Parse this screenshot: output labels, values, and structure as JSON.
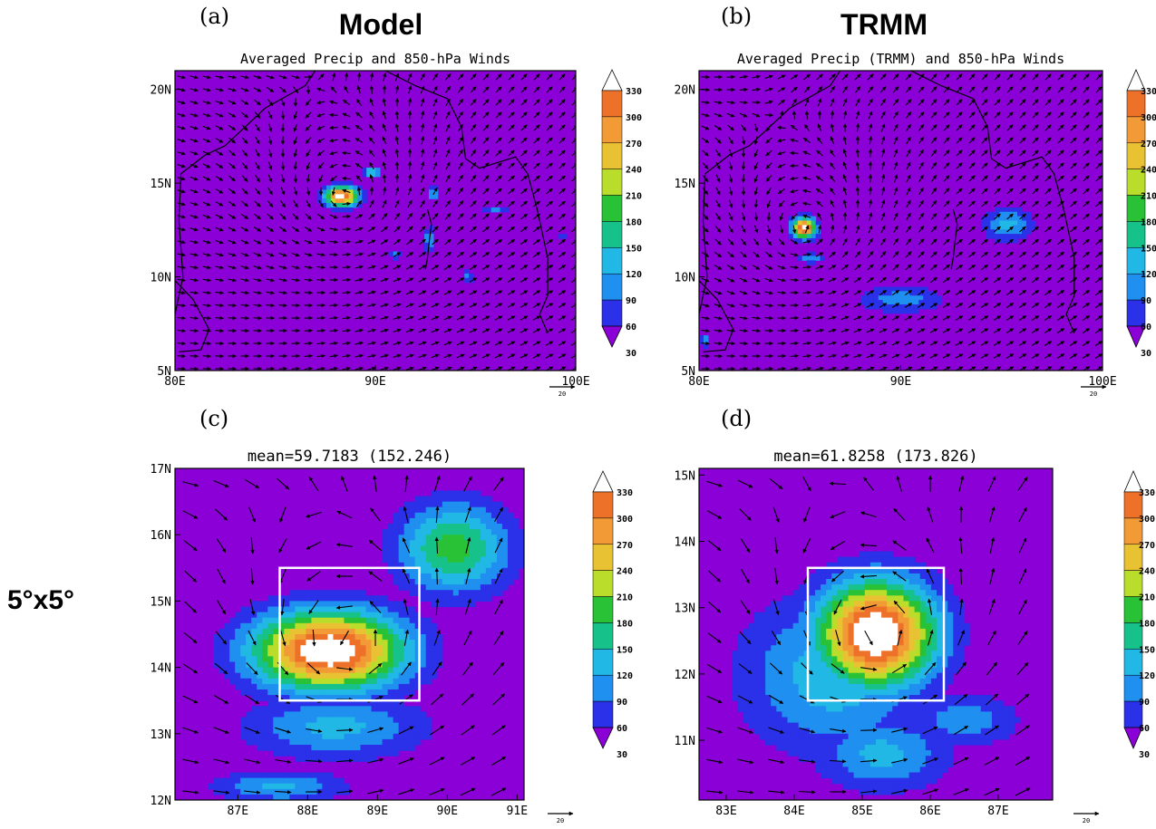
{
  "row_label": "5°x5°",
  "colors": {
    "background": "#8b00d6",
    "land_outline": "#000000",
    "box": "#ffffff",
    "levels": [
      "#8b00d6",
      "#2a31e8",
      "#1f8ff0",
      "#22b8e6",
      "#17c28a",
      "#29c236",
      "#b9dd2a",
      "#e9c233",
      "#f29a35",
      "#ee7129",
      "#ffffff"
    ]
  },
  "colorbar": {
    "labels": [
      "330",
      "300",
      "270",
      "240",
      "210",
      "180",
      "150",
      "120",
      "90",
      "60",
      "30"
    ]
  },
  "wind_ref_label": "20",
  "chart_data": [
    {
      "panel": "(a)",
      "heading": "Model",
      "type": "heatmap",
      "title": "Averaged Precip and 850-hPa Winds",
      "x_ticks": [
        "80E",
        "90E",
        "100E"
      ],
      "y_ticks": [
        "5N",
        "10N",
        "15N",
        "20N"
      ],
      "xlim": [
        80,
        100
      ],
      "ylim": [
        5,
        21
      ],
      "precip_blobs": [
        {
          "lon": 88.3,
          "lat": 14.3,
          "rx": 1.0,
          "ry": 0.65,
          "peak": 330
        },
        {
          "lon": 89.8,
          "lat": 15.6,
          "rx": 0.55,
          "ry": 0.35,
          "peak": 130
        },
        {
          "lon": 92.9,
          "lat": 14.5,
          "rx": 0.35,
          "ry": 0.5,
          "peak": 100
        },
        {
          "lon": 92.7,
          "lat": 12.0,
          "rx": 0.35,
          "ry": 0.8,
          "peak": 95
        },
        {
          "lon": 94.6,
          "lat": 10.0,
          "rx": 0.3,
          "ry": 0.4,
          "peak": 80
        },
        {
          "lon": 96.0,
          "lat": 13.6,
          "rx": 0.8,
          "ry": 0.25,
          "peak": 75
        },
        {
          "lon": 99.3,
          "lat": 12.2,
          "rx": 0.25,
          "ry": 0.3,
          "peak": 70
        },
        {
          "lon": 91.0,
          "lat": 11.2,
          "rx": 0.6,
          "ry": 0.3,
          "peak": 70
        }
      ],
      "vortex": {
        "lon": 88.5,
        "lat": 14.4,
        "strength": 1.0
      }
    },
    {
      "panel": "(b)",
      "heading": "TRMM",
      "type": "heatmap",
      "title": "Averaged Precip (TRMM) and 850-hPa Winds",
      "x_ticks": [
        "80E",
        "90E",
        "100E"
      ],
      "y_ticks": [
        "5N",
        "10N",
        "15N",
        "20N"
      ],
      "xlim": [
        80,
        100
      ],
      "ylim": [
        5,
        21
      ],
      "precip_blobs": [
        {
          "lon": 85.2,
          "lat": 12.6,
          "rx": 0.7,
          "ry": 0.65,
          "peak": 340
        },
        {
          "lon": 85.5,
          "lat": 11.0,
          "rx": 0.8,
          "ry": 0.3,
          "peak": 90
        },
        {
          "lon": 95.3,
          "lat": 12.8,
          "rx": 1.5,
          "ry": 1.1,
          "peak": 100
        },
        {
          "lon": 90.0,
          "lat": 8.8,
          "rx": 2.8,
          "ry": 0.9,
          "peak": 75
        },
        {
          "lon": 80.3,
          "lat": 6.6,
          "rx": 0.3,
          "ry": 0.5,
          "peak": 80
        }
      ],
      "vortex": {
        "lon": 85.2,
        "lat": 12.6,
        "strength": 0.9
      }
    },
    {
      "panel": "(c)",
      "type": "heatmap",
      "title": "mean=59.7183 (152.246)",
      "x_ticks": [
        "87E",
        "88E",
        "89E",
        "90E",
        "91E"
      ],
      "y_ticks": [
        "12N",
        "13N",
        "14N",
        "15N",
        "16N",
        "17N"
      ],
      "xlim": [
        86.1,
        91.1
      ],
      "ylim": [
        12,
        17
      ],
      "box": {
        "lon": [
          87.6,
          89.6
        ],
        "lat": [
          13.5,
          15.5
        ]
      },
      "precip_blobs": [
        {
          "lon": 88.3,
          "lat": 14.25,
          "rx": 1.35,
          "ry": 0.75,
          "peak": 340
        },
        {
          "lon": 90.1,
          "lat": 15.8,
          "rx": 1.0,
          "ry": 0.85,
          "peak": 165
        },
        {
          "lon": 88.4,
          "lat": 13.1,
          "rx": 1.6,
          "ry": 0.6,
          "peak": 100
        },
        {
          "lon": 87.6,
          "lat": 12.2,
          "rx": 1.2,
          "ry": 0.3,
          "peak": 95
        }
      ],
      "vortex": {
        "lon": 88.6,
        "lat": 14.4,
        "strength": 1.0
      }
    },
    {
      "panel": "(d)",
      "type": "heatmap",
      "title": "mean=61.8258 (173.826)",
      "x_ticks": [
        "83E",
        "84E",
        "85E",
        "86E",
        "87E"
      ],
      "y_ticks": [
        "11N",
        "12N",
        "13N",
        "14N",
        "15N"
      ],
      "xlim": [
        82.6,
        87.8
      ],
      "ylim": [
        10.1,
        15.1
      ],
      "box": {
        "lon": [
          84.2,
          86.2
        ],
        "lat": [
          11.6,
          13.6
        ]
      },
      "precip_blobs": [
        {
          "lon": 85.2,
          "lat": 12.6,
          "rx": 1.1,
          "ry": 1.0,
          "peak": 345
        },
        {
          "lon": 84.6,
          "lat": 12.0,
          "rx": 1.7,
          "ry": 1.5,
          "peak": 110
        },
        {
          "lon": 85.3,
          "lat": 10.8,
          "rx": 1.2,
          "ry": 0.7,
          "peak": 100
        },
        {
          "lon": 86.5,
          "lat": 11.3,
          "rx": 1.0,
          "ry": 0.5,
          "peak": 80
        }
      ],
      "vortex": {
        "lon": 85.2,
        "lat": 12.6,
        "strength": 0.9
      }
    }
  ]
}
